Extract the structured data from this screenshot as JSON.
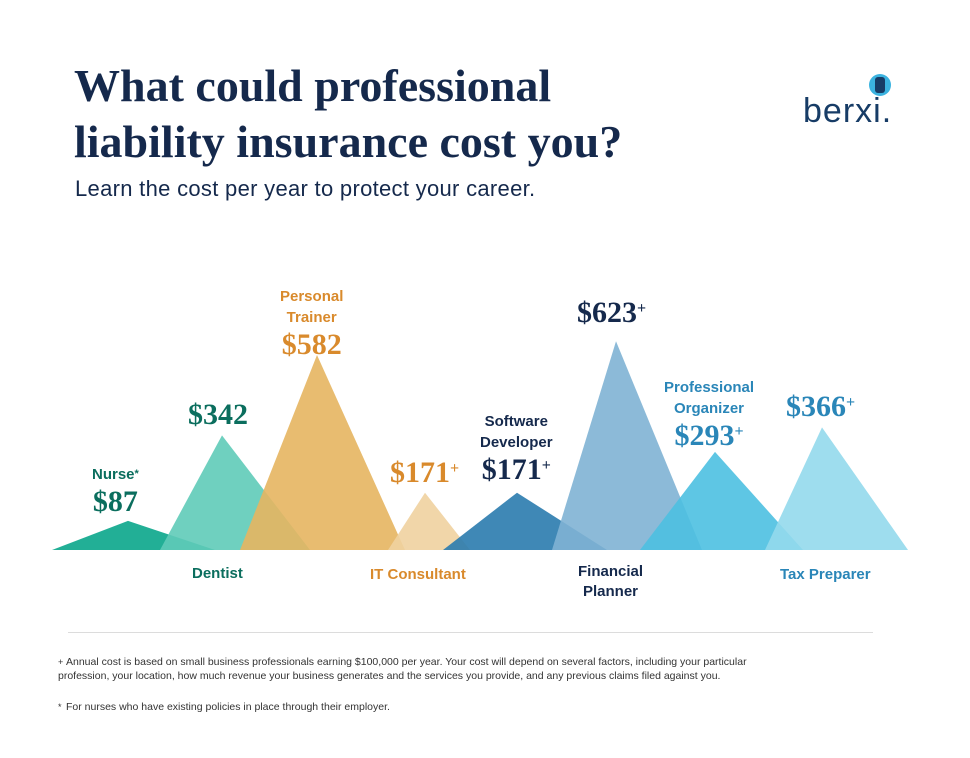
{
  "header": {
    "title_line1": "What could professional",
    "title_line2": "liability insurance cost you?",
    "subtitle": "Learn the cost per year to protect your career."
  },
  "logo": {
    "text": "berxi."
  },
  "chart_data": {
    "type": "triangle-area",
    "title": "What could professional liability insurance cost you?",
    "currency": "$",
    "categories": [
      "Nurse",
      "Dentist",
      "Personal Trainer",
      "IT Consultant",
      "Software Developer",
      "Financial Planner",
      "Professional Organizer",
      "Tax Preparer"
    ],
    "values": [
      87,
      342,
      582,
      171,
      171,
      623,
      293,
      366
    ],
    "value_labels": [
      "$87",
      "$342",
      "$582",
      "$171",
      "$171",
      "$623",
      "$293",
      "$366"
    ],
    "footnote_marks": [
      "*",
      "",
      "",
      "+",
      "+",
      "+",
      "+",
      "+"
    ],
    "colors": [
      "#0aa68b",
      "#5fcbb8",
      "#e6b560",
      "#f0d2a0",
      "#2a7bae",
      "#80b3d4",
      "#4cc0e1",
      "#94d9ec"
    ]
  },
  "labels": {
    "nurse": "Nurse",
    "dentist": "Dentist",
    "personal_trainer_1": "Personal",
    "personal_trainer_2": "Trainer",
    "it_consultant": "IT Consultant",
    "software_developer_1": "Software",
    "software_developer_2": "Developer",
    "financial_planner_1": "Financial",
    "financial_planner_2": "Planner",
    "professional_organizer_1": "Professional",
    "professional_organizer_2": "Organizer",
    "tax_preparer": "Tax Preparer",
    "star": "*",
    "plus": "+"
  },
  "footnotes": {
    "plus_mark": "+",
    "plus_text": "Annual cost is based on small business professionals earning $100,000 per year. Your cost will depend on several factors, including your particular profession, your location, how much revenue your business generates and the services you provide, and any previous claims filed against you.",
    "star_mark": "*",
    "star_text": "For nurses who have existing policies in place through their employer."
  }
}
